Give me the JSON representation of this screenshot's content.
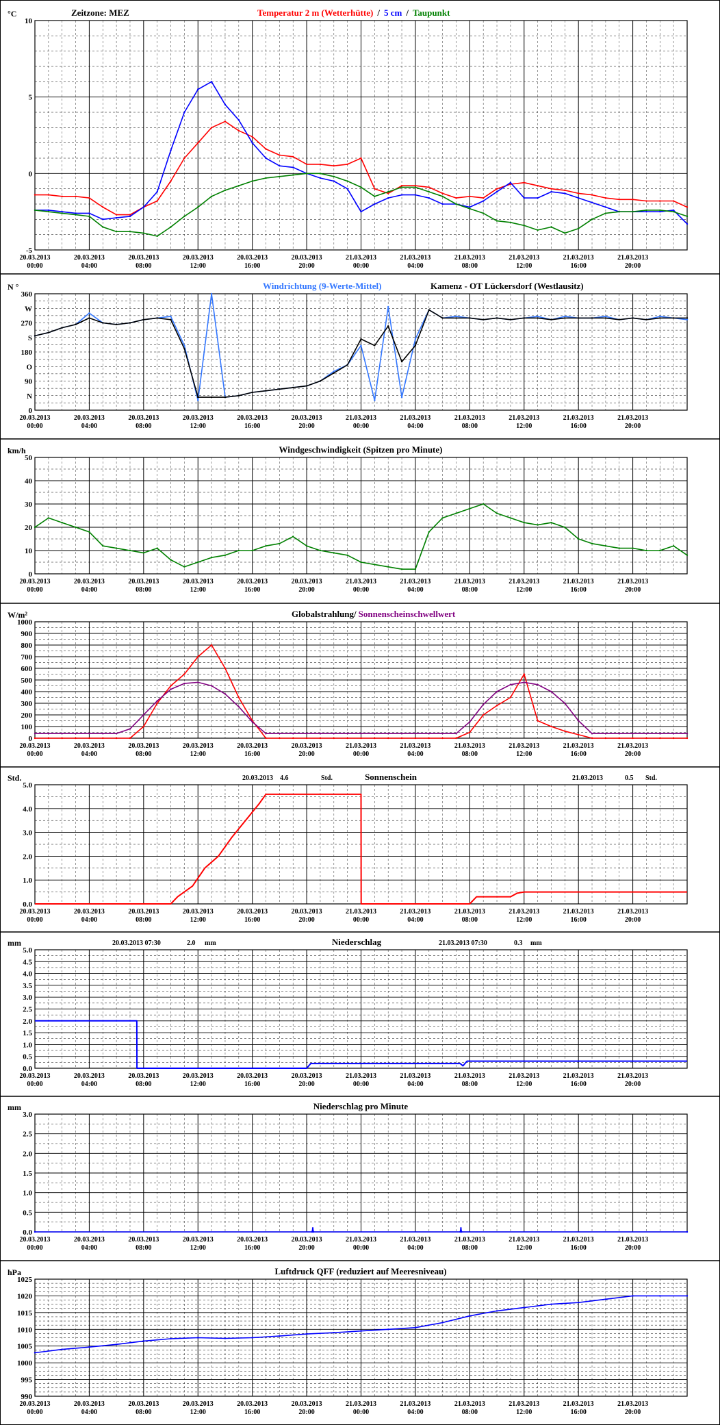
{
  "page": {
    "timezone_label": "Zeitzone: MEZ",
    "station_label": "Kamenz - OT Lückersdorf (Westlausitz)",
    "x_tick_dates": [
      "20.03.2013",
      "20.03.2013",
      "20.03.2013",
      "20.03.2013",
      "20.03.2013",
      "20.03.2013",
      "21.03.2013",
      "21.03.2013",
      "21.03.2013",
      "21.03.2013",
      "21.03.2013",
      "21.03.2013"
    ],
    "x_tick_times": [
      "00:00",
      "04:00",
      "08:00",
      "12:00",
      "16:00",
      "20:00",
      "00:00",
      "04:00",
      "08:00",
      "12:00",
      "16:00",
      "20:00"
    ],
    "colors": {
      "grid": "#000000",
      "red": "#ff0000",
      "blue": "#0000ff",
      "lightblue": "#3377ff",
      "green": "#008000",
      "purple": "#800080",
      "black": "#000000"
    }
  },
  "chart_data": [
    {
      "id": "temperature",
      "type": "line",
      "unit_label": "°C",
      "title_parts": [
        "Temperatur 2 m (Wetterhütte)",
        "/",
        "5 cm",
        "/",
        "Taupunkt"
      ],
      "ylim": [
        -5,
        10
      ],
      "yticks": [
        -5,
        0,
        5,
        10
      ],
      "x_hours": [
        0,
        1,
        2,
        3,
        4,
        5,
        6,
        7,
        8,
        9,
        10,
        11,
        12,
        13,
        14,
        15,
        16,
        17,
        18,
        19,
        20,
        21,
        22,
        23,
        24,
        25,
        26,
        27,
        28,
        29,
        30,
        31,
        32,
        33,
        34,
        35,
        36,
        37,
        38,
        39,
        40,
        41,
        42,
        43,
        44,
        45,
        46,
        47,
        48
      ],
      "series": [
        {
          "name": "Temperatur 2 m (Wetterhütte)",
          "color": "red",
          "values": [
            -1.4,
            -1.4,
            -1.5,
            -1.5,
            -1.6,
            -2.2,
            -2.7,
            -2.7,
            -2.2,
            -1.8,
            -0.5,
            1.0,
            2.0,
            3.0,
            3.4,
            2.8,
            2.4,
            1.6,
            1.2,
            1.1,
            0.6,
            0.6,
            0.5,
            0.6,
            1.0,
            -1.0,
            -1.3,
            -0.8,
            -0.8,
            -0.9,
            -1.3,
            -1.6,
            -1.5,
            -1.6,
            -1.0,
            -0.7,
            -0.6,
            -0.8,
            -1.0,
            -1.1,
            -1.3,
            -1.4,
            -1.6,
            -1.7,
            -1.7,
            -1.8,
            -1.8,
            -1.8,
            -2.2
          ]
        },
        {
          "name": "5 cm",
          "color": "blue",
          "values": [
            -2.4,
            -2.4,
            -2.5,
            -2.6,
            -2.6,
            -3.0,
            -2.9,
            -2.8,
            -2.2,
            -1.2,
            1.5,
            4.0,
            5.5,
            6.0,
            4.5,
            3.5,
            2.0,
            1.0,
            0.5,
            0.4,
            0.0,
            -0.3,
            -0.5,
            -1.0,
            -2.5,
            -2.0,
            -1.6,
            -1.4,
            -1.4,
            -1.6,
            -2.0,
            -2.0,
            -2.2,
            -1.8,
            -1.2,
            -0.6,
            -1.6,
            -1.6,
            -1.2,
            -1.3,
            -1.6,
            -1.9,
            -2.2,
            -2.5,
            -2.5,
            -2.5,
            -2.5,
            -2.4,
            -3.3
          ]
        },
        {
          "name": "Taupunkt",
          "color": "green",
          "values": [
            -2.4,
            -2.5,
            -2.6,
            -2.7,
            -2.8,
            -3.5,
            -3.8,
            -3.8,
            -3.9,
            -4.1,
            -3.5,
            -2.8,
            -2.2,
            -1.5,
            -1.1,
            -0.8,
            -0.5,
            -0.3,
            -0.2,
            -0.1,
            0.0,
            0.0,
            -0.2,
            -0.5,
            -0.9,
            -1.5,
            -1.2,
            -0.9,
            -0.9,
            -1.2,
            -1.5,
            -2.0,
            -2.3,
            -2.6,
            -3.1,
            -3.2,
            -3.4,
            -3.7,
            -3.5,
            -3.9,
            -3.6,
            -3.0,
            -2.6,
            -2.5,
            -2.5,
            -2.4,
            -2.4,
            -2.5,
            -2.8
          ]
        }
      ]
    },
    {
      "id": "wind_direction",
      "type": "line",
      "unit_label": "N °",
      "title": "Windrichtung (9-Werte-Mittel)",
      "ylim": [
        0,
        360
      ],
      "ytick_labels": [
        {
          "v": 360,
          "t": "360"
        },
        {
          "v": 315,
          "t": "W"
        },
        {
          "v": 270,
          "t": "270"
        },
        {
          "v": 225,
          "t": "S"
        },
        {
          "v": 180,
          "t": "180"
        },
        {
          "v": 135,
          "t": "O"
        },
        {
          "v": 90,
          "t": "90"
        },
        {
          "v": 45,
          "t": "N"
        },
        {
          "v": 0,
          "t": "0"
        }
      ],
      "x_hours": [
        0,
        1,
        2,
        3,
        4,
        5,
        6,
        7,
        8,
        9,
        10,
        11,
        12,
        13,
        14,
        15,
        16,
        17,
        18,
        19,
        20,
        21,
        22,
        23,
        24,
        25,
        26,
        27,
        28,
        29,
        30,
        31,
        32,
        33,
        34,
        35,
        36,
        37,
        38,
        39,
        40,
        41,
        42,
        43,
        44,
        45,
        46,
        47,
        48
      ],
      "series": [
        {
          "name": "Windrichtung",
          "color": "lightblue",
          "values": [
            230,
            240,
            255,
            265,
            300,
            270,
            265,
            270,
            280,
            285,
            290,
            200,
            30,
            360,
            40,
            45,
            55,
            60,
            65,
            70,
            75,
            90,
            120,
            140,
            200,
            30,
            320,
            40,
            220,
            310,
            285,
            290,
            285,
            280,
            285,
            280,
            285,
            290,
            280,
            290,
            285,
            285,
            290,
            280,
            285,
            280,
            290,
            285,
            280
          ]
        },
        {
          "name": "9-Werte-Mittel",
          "color": "black",
          "values": [
            230,
            240,
            255,
            265,
            285,
            270,
            265,
            270,
            280,
            285,
            280,
            190,
            40,
            40,
            40,
            45,
            55,
            60,
            65,
            70,
            75,
            90,
            115,
            140,
            220,
            200,
            260,
            150,
            200,
            310,
            285,
            285,
            285,
            280,
            285,
            280,
            285,
            285,
            280,
            285,
            285,
            285,
            285,
            280,
            285,
            280,
            285,
            285,
            285
          ]
        }
      ]
    },
    {
      "id": "wind_speed",
      "type": "line",
      "unit_label": "km/h",
      "title": "Windgeschwindigkeit (Spitzen pro Minute)",
      "ylim": [
        0,
        50
      ],
      "yticks": [
        0,
        10,
        20,
        30,
        40,
        50
      ],
      "x_hours": [
        0,
        1,
        2,
        3,
        4,
        5,
        6,
        7,
        8,
        9,
        10,
        11,
        12,
        13,
        14,
        15,
        16,
        17,
        18,
        19,
        20,
        21,
        22,
        23,
        24,
        25,
        26,
        27,
        28,
        29,
        30,
        31,
        32,
        33,
        34,
        35,
        36,
        37,
        38,
        39,
        40,
        41,
        42,
        43,
        44,
        45,
        46,
        47,
        48
      ],
      "series": [
        {
          "name": "Windgeschwindigkeit",
          "color": "green",
          "values": [
            20,
            24,
            22,
            20,
            18,
            12,
            11,
            10,
            9,
            11,
            6,
            3,
            5,
            7,
            8,
            10,
            10,
            12,
            13,
            16,
            12,
            10,
            9,
            8,
            5,
            4,
            3,
            2,
            2,
            18,
            24,
            26,
            28,
            30,
            26,
            24,
            22,
            21,
            22,
            20,
            15,
            13,
            12,
            11,
            11,
            10,
            10,
            12,
            8
          ]
        }
      ]
    },
    {
      "id": "radiation",
      "type": "line",
      "unit_label": "W/m²",
      "title_parts": [
        "Globalstrahlung/",
        "Sonnenscheinschwellwert"
      ],
      "ylim": [
        0,
        1000
      ],
      "yticks": [
        0,
        100,
        200,
        300,
        400,
        500,
        600,
        700,
        800,
        900,
        1000
      ],
      "x_hours": [
        0,
        1,
        2,
        3,
        4,
        5,
        6,
        7,
        8,
        9,
        10,
        11,
        12,
        13,
        14,
        15,
        16,
        17,
        18,
        19,
        20,
        21,
        22,
        23,
        24,
        25,
        26,
        27,
        28,
        29,
        30,
        31,
        32,
        33,
        34,
        35,
        36,
        37,
        38,
        39,
        40,
        41,
        42,
        43,
        44,
        45,
        46,
        47,
        48
      ],
      "series": [
        {
          "name": "Globalstrahlung",
          "color": "red",
          "values": [
            0,
            0,
            0,
            0,
            0,
            0,
            0,
            0,
            100,
            300,
            450,
            550,
            700,
            800,
            600,
            350,
            150,
            0,
            0,
            0,
            0,
            0,
            0,
            0,
            0,
            0,
            0,
            0,
            0,
            0,
            0,
            0,
            50,
            200,
            280,
            350,
            550,
            150,
            100,
            60,
            30,
            0,
            0,
            0,
            0,
            0,
            0,
            0,
            0
          ]
        },
        {
          "name": "Sonnenscheinschwellwert",
          "color": "purple",
          "values": [
            40,
            40,
            40,
            40,
            40,
            40,
            40,
            80,
            200,
            320,
            420,
            470,
            480,
            450,
            380,
            270,
            140,
            40,
            40,
            40,
            40,
            40,
            40,
            40,
            40,
            40,
            40,
            40,
            40,
            40,
            40,
            40,
            140,
            290,
            400,
            460,
            480,
            460,
            400,
            300,
            150,
            40,
            40,
            40,
            40,
            40,
            40,
            40,
            40
          ]
        }
      ]
    },
    {
      "id": "sunshine",
      "type": "line",
      "unit_label": "Std.",
      "title": "Sonnenschein",
      "summaries": [
        {
          "date": "20.03.2013",
          "value": "4.6",
          "unit": "Std."
        },
        {
          "date": "21.03.2013",
          "value": "0.5",
          "unit": "Std."
        }
      ],
      "ylim": [
        0,
        5
      ],
      "yticks": [
        0,
        1,
        2,
        3,
        4,
        5
      ],
      "ytick_labels": [
        "0.0",
        "1.0",
        "2.0",
        "3.0",
        "4.0",
        "5.0"
      ],
      "x_hours": [
        0,
        10,
        10.5,
        11.6,
        12.5,
        13.5,
        14.5,
        15.5,
        16.5,
        17,
        18,
        22,
        24,
        24.01,
        32,
        32.5,
        35,
        35.5,
        36,
        48
      ],
      "series": [
        {
          "name": "Sonnenschein",
          "color": "red",
          "values": [
            0,
            0,
            0.3,
            0.75,
            1.5,
            2.0,
            2.8,
            3.5,
            4.2,
            4.6,
            4.6,
            4.6,
            4.6,
            0,
            0,
            0.3,
            0.3,
            0.45,
            0.5,
            0.5
          ]
        }
      ]
    },
    {
      "id": "precipitation",
      "type": "line",
      "unit_label": "mm",
      "title": "Niederschlag",
      "summaries": [
        {
          "date": "20.03.2013 07:30",
          "value": "2.0",
          "unit": "mm"
        },
        {
          "date": "21.03.2013 07:30",
          "value": "0.3",
          "unit": "mm"
        }
      ],
      "ylim": [
        0,
        5
      ],
      "yticks": [
        0,
        0.5,
        1,
        1.5,
        2,
        2.5,
        3,
        3.5,
        4,
        4.5,
        5
      ],
      "ytick_labels": [
        "0.0",
        "0.5",
        "1.0",
        "1.5",
        "2.0",
        "2.5",
        "3.0",
        "3.5",
        "4.0",
        "4.5",
        "5.0"
      ],
      "x_hours": [
        0,
        7.5,
        7.51,
        20,
        20.3,
        31.3,
        31.5,
        31.8,
        48
      ],
      "series": [
        {
          "name": "Niederschlag",
          "color": "blue",
          "values": [
            2.0,
            2.0,
            0.0,
            0.0,
            0.2,
            0.2,
            0.1,
            0.3,
            0.3
          ]
        }
      ]
    },
    {
      "id": "precipitation_per_minute",
      "type": "line",
      "unit_label": "mm",
      "title": "Niederschlag pro Minute",
      "ylim": [
        0,
        3
      ],
      "yticks": [
        0,
        0.5,
        1,
        1.5,
        2,
        2.5,
        3
      ],
      "ytick_labels": [
        "0.0",
        "0.5",
        "1.0",
        "1.5",
        "2.0",
        "2.5",
        "3.0"
      ],
      "x_hours": [
        0,
        20.4,
        20.45,
        20.5,
        31.3,
        31.35,
        31.4,
        48
      ],
      "series": [
        {
          "name": "Niederschlag pro Minute",
          "color": "blue",
          "values": [
            0,
            0,
            0.1,
            0,
            0,
            0.1,
            0,
            0
          ]
        }
      ]
    },
    {
      "id": "pressure",
      "type": "line",
      "unit_label": "hPa",
      "title": "Luftdruck QFF (reduziert auf Meeresniveau)",
      "ylim": [
        990,
        1025
      ],
      "yticks": [
        990,
        995,
        1000,
        1005,
        1010,
        1015,
        1020,
        1025
      ],
      "x_hours": [
        0,
        2,
        4,
        6,
        8,
        10,
        12,
        14,
        16,
        18,
        20,
        22,
        24,
        26,
        28,
        30,
        32,
        34,
        36,
        38,
        40,
        42,
        44,
        46,
        48
      ],
      "series": [
        {
          "name": "Luftdruck QFF",
          "color": "blue",
          "values": [
            1003,
            1004,
            1004.7,
            1005.5,
            1006.5,
            1007.2,
            1007.5,
            1007.3,
            1007.5,
            1008,
            1008.6,
            1009,
            1009.5,
            1010,
            1010.5,
            1012,
            1014,
            1015.5,
            1016.5,
            1017.5,
            1018,
            1019,
            1020,
            1020,
            1020
          ]
        }
      ]
    }
  ]
}
